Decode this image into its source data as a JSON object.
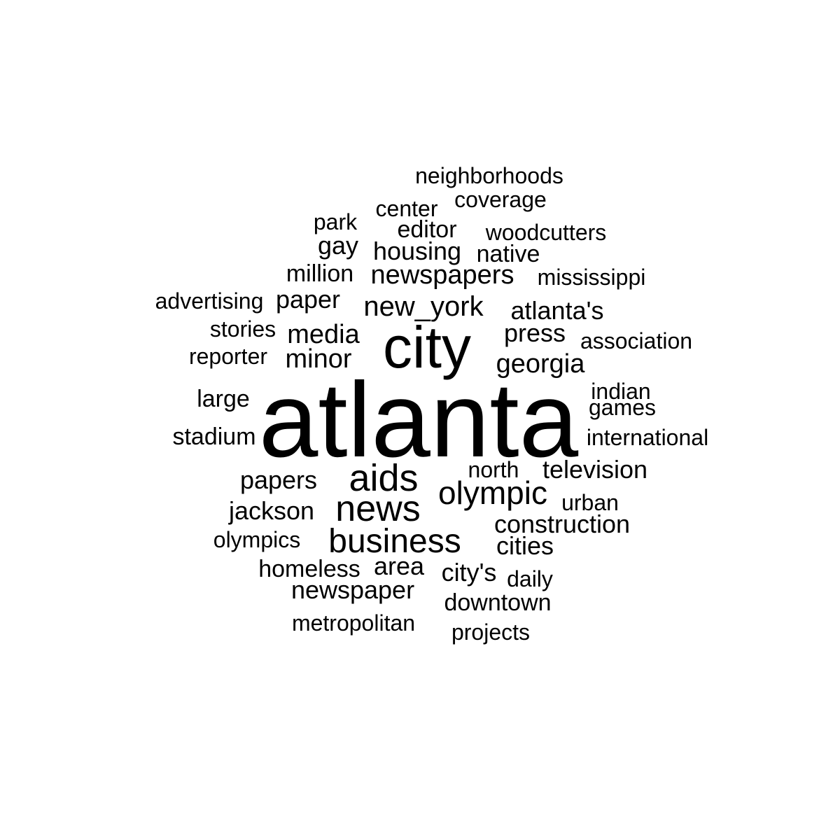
{
  "word_color": "#000000",
  "words": [
    {
      "text": "atlanta"
    },
    {
      "text": "city"
    },
    {
      "text": "news"
    },
    {
      "text": "business"
    },
    {
      "text": "aids"
    },
    {
      "text": "olympic"
    },
    {
      "text": "new_york"
    },
    {
      "text": "newspapers"
    },
    {
      "text": "georgia"
    },
    {
      "text": "media"
    },
    {
      "text": "minor"
    },
    {
      "text": "housing"
    },
    {
      "text": "television"
    },
    {
      "text": "construction"
    },
    {
      "text": "newspaper"
    },
    {
      "text": "atlanta's"
    },
    {
      "text": "press"
    },
    {
      "text": "paper"
    },
    {
      "text": "papers"
    },
    {
      "text": "jackson"
    },
    {
      "text": "area"
    },
    {
      "text": "city's"
    },
    {
      "text": "downtown"
    },
    {
      "text": "cities"
    },
    {
      "text": "editor"
    },
    {
      "text": "gay"
    },
    {
      "text": "native"
    },
    {
      "text": "million"
    },
    {
      "text": "homeless"
    },
    {
      "text": "metropolitan"
    },
    {
      "text": "neighborhoods"
    },
    {
      "text": "coverage"
    },
    {
      "text": "center"
    },
    {
      "text": "woodcutters"
    },
    {
      "text": "park"
    },
    {
      "text": "mississippi"
    },
    {
      "text": "advertising"
    },
    {
      "text": "stories"
    },
    {
      "text": "association"
    },
    {
      "text": "reporter"
    },
    {
      "text": "large"
    },
    {
      "text": "indian"
    },
    {
      "text": "games"
    },
    {
      "text": "stadium"
    },
    {
      "text": "international"
    },
    {
      "text": "north"
    },
    {
      "text": "urban"
    },
    {
      "text": "olympics"
    },
    {
      "text": "daily"
    },
    {
      "text": "projects"
    }
  ]
}
